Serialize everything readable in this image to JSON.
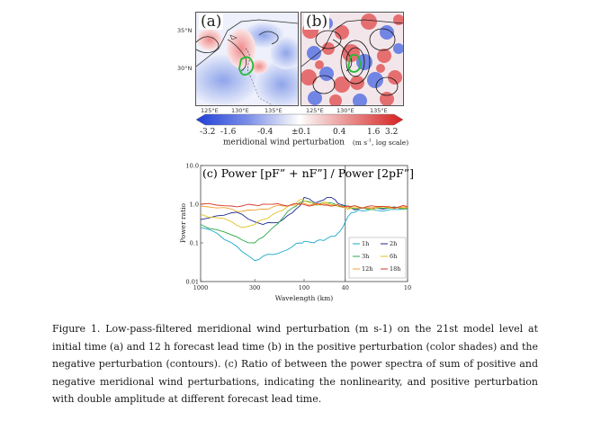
{
  "figure_panels": {
    "a": {
      "label": "(a)"
    },
    "b": {
      "label": "(b)"
    },
    "lat_ticks": [
      "35°N",
      "30°N"
    ],
    "lon_ticks": [
      "125°E",
      "130°E",
      "135°E"
    ]
  },
  "colorbar": {
    "ticks": [
      "-3.2",
      "-1.6",
      "-0.4",
      "±0.1",
      "0.4",
      "1.6",
      "3.2"
    ],
    "label": "meridional wind perturbation",
    "units": "(m s",
    "units_sup": "-1",
    "units_tail": ", log scale)",
    "colors": {
      "negative": "#1f3fd6",
      "neutral": "#ffffff",
      "positive": "#d61f1f"
    }
  },
  "chart_data": {
    "type": "line",
    "title": "(c) Power [pF” + nF”] / Power [2pF”]",
    "xlabel": "Wavelength (km)",
    "ylabel": "Power ratio",
    "x_scale": "log, reversed",
    "y_scale": "log",
    "xlim": [
      1000,
      10
    ],
    "ylim": [
      0.01,
      10.0
    ],
    "x_ticks": [
      "1000",
      "300",
      "100",
      "40",
      "10"
    ],
    "y_ticks": [
      "10.0",
      "1.0",
      "0.1",
      "0.01"
    ],
    "vertical_line_at": 40,
    "legend_position": "bottom-right",
    "series": [
      {
        "name": "1h",
        "color": "#1aa9c9",
        "x": [
          1000,
          700,
          500,
          400,
          300,
          250,
          200,
          160,
          130,
          110,
          100,
          80,
          70,
          60,
          50,
          45,
          40,
          35,
          30,
          25,
          20,
          15,
          12,
          10
        ],
        "y": [
          0.25,
          0.18,
          0.1,
          0.06,
          0.035,
          0.045,
          0.05,
          0.06,
          0.08,
          0.1,
          0.11,
          0.1,
          0.12,
          0.13,
          0.15,
          0.2,
          0.35,
          0.6,
          0.7,
          0.68,
          0.7,
          0.72,
          0.72,
          0.75
        ]
      },
      {
        "name": "2h",
        "color": "#1c2a8c",
        "x": [
          1000,
          700,
          500,
          400,
          300,
          250,
          200,
          160,
          130,
          110,
          100,
          80,
          70,
          60,
          50,
          45,
          40,
          35,
          30,
          25,
          20,
          15,
          12,
          10
        ],
        "y": [
          0.4,
          0.5,
          0.6,
          0.55,
          0.35,
          0.3,
          0.33,
          0.4,
          0.6,
          0.9,
          1.5,
          1.1,
          1.2,
          1.5,
          1.3,
          1.0,
          0.9,
          0.8,
          0.75,
          0.78,
          0.8,
          0.8,
          0.78,
          0.8
        ]
      },
      {
        "name": "3h",
        "color": "#2aa84a",
        "x": [
          1000,
          700,
          500,
          400,
          300,
          250,
          200,
          160,
          130,
          110,
          100,
          80,
          70,
          60,
          50,
          45,
          40,
          35,
          30,
          25,
          20,
          15,
          12,
          10
        ],
        "y": [
          0.3,
          0.22,
          0.16,
          0.12,
          0.1,
          0.14,
          0.25,
          0.45,
          0.8,
          1.1,
          1.2,
          1.0,
          1.05,
          1.1,
          1.0,
          0.9,
          0.85,
          0.8,
          0.78,
          0.75,
          0.8,
          0.78,
          0.8,
          0.8
        ]
      },
      {
        "name": "6h",
        "color": "#e0c21a",
        "x": [
          1000,
          700,
          500,
          400,
          300,
          250,
          200,
          160,
          130,
          110,
          100,
          80,
          70,
          60,
          50,
          45,
          40,
          35,
          30,
          25,
          20,
          15,
          12,
          10
        ],
        "y": [
          0.55,
          0.45,
          0.35,
          0.25,
          0.3,
          0.4,
          0.55,
          0.7,
          1.0,
          1.3,
          1.2,
          1.05,
          1.0,
          1.1,
          0.95,
          0.85,
          0.8,
          0.8,
          0.78,
          0.8,
          0.8,
          0.8,
          0.82,
          0.82
        ]
      },
      {
        "name": "12h",
        "color": "#f0a030",
        "x": [
          1000,
          700,
          500,
          400,
          300,
          250,
          200,
          160,
          130,
          110,
          100,
          80,
          70,
          60,
          50,
          45,
          40,
          35,
          30,
          25,
          20,
          15,
          12,
          10
        ],
        "y": [
          0.9,
          0.8,
          0.75,
          0.65,
          0.7,
          0.75,
          0.85,
          0.9,
          0.95,
          1.0,
          1.05,
          1.0,
          0.95,
          1.0,
          0.95,
          0.9,
          0.85,
          0.85,
          0.83,
          0.82,
          0.83,
          0.82,
          0.83,
          0.83
        ]
      },
      {
        "name": "18h",
        "color": "#d63a2a",
        "x": [
          1000,
          700,
          500,
          400,
          300,
          250,
          200,
          160,
          130,
          110,
          100,
          80,
          70,
          60,
          50,
          45,
          40,
          35,
          30,
          25,
          20,
          15,
          12,
          10
        ],
        "y": [
          1.0,
          0.95,
          0.9,
          0.9,
          0.95,
          1.0,
          1.0,
          0.95,
          1.0,
          1.0,
          0.98,
          0.95,
          1.0,
          0.95,
          0.92,
          0.9,
          0.88,
          0.88,
          0.86,
          0.86,
          0.87,
          0.86,
          0.86,
          0.86
        ]
      }
    ]
  },
  "caption": {
    "text": "Figure 1. Low-pass-filtered meridional wind perturbation (m s-1) on the 21st model level at initial time (a) and 12 h forecast lead time (b) in the positive perturbation (color shades) and the negative perturbation (contours). (c) Ratio of between the power spectra of sum of positive and negative meridional wind perturbations, indicating the nonlinearity, and positive perturbation with double amplitude at different forecast lead time."
  }
}
